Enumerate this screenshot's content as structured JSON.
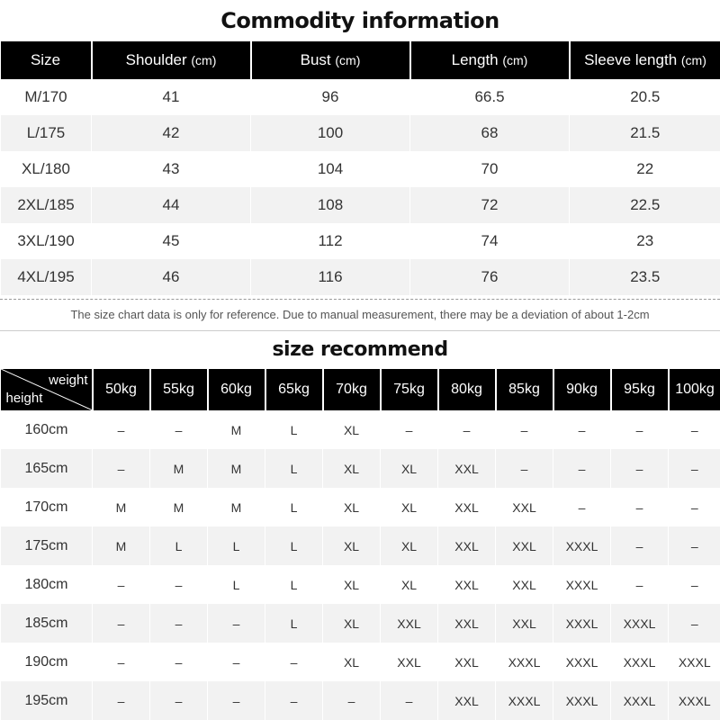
{
  "commodity": {
    "title": "Commodity information",
    "headers": [
      {
        "label": "Size",
        "unit": ""
      },
      {
        "label": "Shoulder ",
        "unit": "(cm)"
      },
      {
        "label": "Bust ",
        "unit": "(cm)"
      },
      {
        "label": "Length ",
        "unit": "(cm)"
      },
      {
        "label": "Sleeve length ",
        "unit": "(cm)"
      }
    ],
    "rows": [
      [
        "M/170",
        "41",
        "96",
        "66.5",
        "20.5"
      ],
      [
        "L/175",
        "42",
        "100",
        "68",
        "21.5"
      ],
      [
        "XL/180",
        "43",
        "104",
        "70",
        "22"
      ],
      [
        "2XL/185",
        "44",
        "108",
        "72",
        "22.5"
      ],
      [
        "3XL/190",
        "45",
        "112",
        "74",
        "23"
      ],
      [
        "4XL/195",
        "46",
        "116",
        "76",
        "23.5"
      ]
    ],
    "note": "The size chart data is only for reference. Due to manual measurement, there may be a deviation of about 1-2cm"
  },
  "recommend": {
    "title": "size recommend",
    "corner_weight": "weight",
    "corner_height": "height",
    "weights": [
      "50kg",
      "55kg",
      "60kg",
      "65kg",
      "70kg",
      "75kg",
      "80kg",
      "85kg",
      "90kg",
      "95kg",
      "100kg"
    ],
    "rows": [
      {
        "height": "160cm",
        "sizes": [
          "–",
          "–",
          "M",
          "L",
          "XL",
          "–",
          "–",
          "–",
          "–",
          "–",
          "–"
        ]
      },
      {
        "height": "165cm",
        "sizes": [
          "–",
          "M",
          "M",
          "L",
          "XL",
          "XL",
          "XXL",
          "–",
          "–",
          "–",
          "–"
        ]
      },
      {
        "height": "170cm",
        "sizes": [
          "M",
          "M",
          "M",
          "L",
          "XL",
          "XL",
          "XXL",
          "XXL",
          "–",
          "–",
          "–"
        ]
      },
      {
        "height": "175cm",
        "sizes": [
          "M",
          "L",
          "L",
          "L",
          "XL",
          "XL",
          "XXL",
          "XXL",
          "XXXL",
          "–",
          "–"
        ]
      },
      {
        "height": "180cm",
        "sizes": [
          "–",
          "–",
          "L",
          "L",
          "XL",
          "XL",
          "XXL",
          "XXL",
          "XXXL",
          "–",
          "–"
        ]
      },
      {
        "height": "185cm",
        "sizes": [
          "–",
          "–",
          "–",
          "L",
          "XL",
          "XXL",
          "XXL",
          "XXL",
          "XXXL",
          "XXXL",
          "–"
        ]
      },
      {
        "height": "190cm",
        "sizes": [
          "–",
          "–",
          "–",
          "–",
          "XL",
          "XXL",
          "XXL",
          "XXXL",
          "XXXL",
          "XXXL",
          "XXXL"
        ]
      },
      {
        "height": "195cm",
        "sizes": [
          "–",
          "–",
          "–",
          "–",
          "–",
          "–",
          "XXL",
          "XXXL",
          "XXXL",
          "XXXL",
          "XXXL"
        ]
      }
    ]
  }
}
